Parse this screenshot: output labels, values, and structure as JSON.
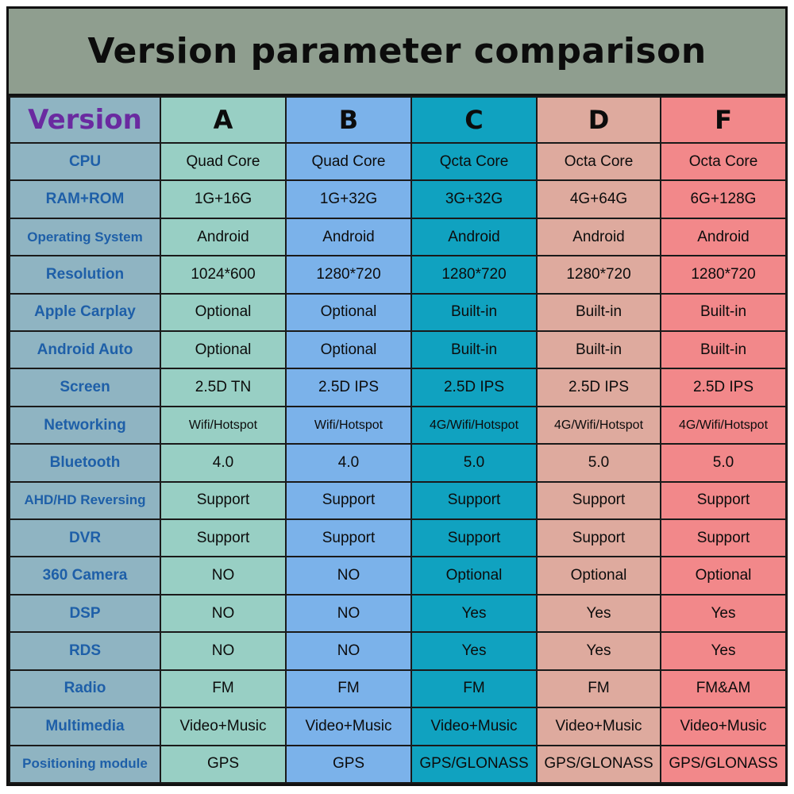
{
  "title": "Version parameter comparison",
  "header_label": "Version",
  "column_colors": {
    "label": "#8fb4c2",
    "A": "#98cfc4",
    "B": "#7bb2ea",
    "C": "#10a2c0",
    "D": "#deaa9e",
    "F": "#f2888a"
  },
  "versions": [
    "A",
    "B",
    "C",
    "D",
    "F"
  ],
  "rows": [
    {
      "label": "CPU",
      "values": [
        "Quad Core",
        "Quad Core",
        "Qcta Core",
        "Octa Core",
        "Octa Core"
      ]
    },
    {
      "label": "RAM+ROM",
      "values": [
        "1G+16G",
        "1G+32G",
        "3G+32G",
        "4G+64G",
        "6G+128G"
      ]
    },
    {
      "label": "Operating System",
      "values": [
        "Android",
        "Android",
        "Android",
        "Android",
        "Android"
      ]
    },
    {
      "label": "Resolution",
      "values": [
        "1024*600",
        "1280*720",
        "1280*720",
        "1280*720",
        "1280*720"
      ]
    },
    {
      "label": "Apple Carplay",
      "values": [
        "Optional",
        "Optional",
        "Built-in",
        "Built-in",
        "Built-in"
      ]
    },
    {
      "label": "Android Auto",
      "values": [
        "Optional",
        "Optional",
        "Built-in",
        "Built-in",
        "Built-in"
      ]
    },
    {
      "label": "Screen",
      "values": [
        "2.5D TN",
        "2.5D IPS",
        "2.5D IPS",
        "2.5D IPS",
        "2.5D IPS"
      ]
    },
    {
      "label": "Networking",
      "values": [
        "Wifi/Hotspot",
        "Wifi/Hotspot",
        "4G/Wifi/Hotspot",
        "4G/Wifi/Hotspot",
        "4G/Wifi/Hotspot"
      ]
    },
    {
      "label": "Bluetooth",
      "values": [
        "4.0",
        "4.0",
        "5.0",
        "5.0",
        "5.0"
      ]
    },
    {
      "label": "AHD/HD Reversing",
      "values": [
        "Support",
        "Support",
        "Support",
        "Support",
        "Support"
      ]
    },
    {
      "label": "DVR",
      "values": [
        "Support",
        "Support",
        "Support",
        "Support",
        "Support"
      ]
    },
    {
      "label": "360 Camera",
      "values": [
        "NO",
        "NO",
        "Optional",
        "Optional",
        "Optional"
      ]
    },
    {
      "label": "DSP",
      "values": [
        "NO",
        "NO",
        "Yes",
        "Yes",
        "Yes"
      ]
    },
    {
      "label": "RDS",
      "values": [
        "NO",
        "NO",
        "Yes",
        "Yes",
        "Yes"
      ]
    },
    {
      "label": "Radio",
      "values": [
        "FM",
        "FM",
        "FM",
        "FM",
        "FM&AM"
      ]
    },
    {
      "label": "Multimedia",
      "values": [
        "Video+Music",
        "Video+Music",
        "Video+Music",
        "Video+Music",
        "Video+Music"
      ]
    },
    {
      "label": "Positioning module",
      "values": [
        "GPS",
        "GPS",
        "GPS/GLONASS",
        "GPS/GLONASS",
        "GPS/GLONASS"
      ]
    }
  ]
}
